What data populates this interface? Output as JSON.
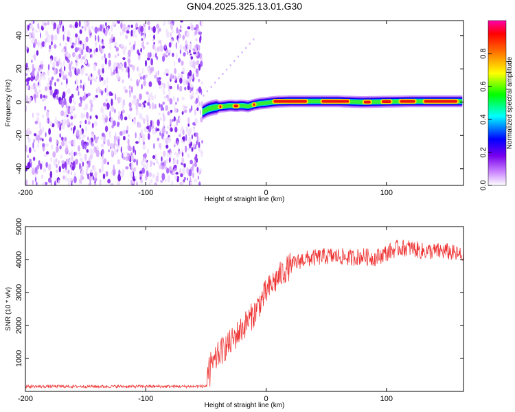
{
  "title": "GN04.2025.325.13.01.G30",
  "chart_data": [
    {
      "type": "heatmap",
      "name": "spectrogram",
      "xlabel": "Height of straight line (km)",
      "ylabel": "Frequency (Hz)",
      "xlim": [
        -200,
        164
      ],
      "ylim": [
        -50,
        49
      ],
      "xticks": [
        -200,
        -100,
        0,
        100
      ],
      "yticks": [
        -40,
        -20,
        0,
        20,
        40
      ],
      "noise_region_x": [
        -200,
        -53
      ],
      "carrier_trace": {
        "x": [
          -53,
          -48,
          -42,
          -35,
          -30,
          -25,
          -20,
          -15,
          -10,
          -5,
          0,
          5,
          10,
          20,
          40,
          60,
          80,
          100,
          120,
          140,
          164
        ],
        "y": [
          -6,
          -4,
          -3,
          -2.5,
          -2,
          -2.3,
          -2,
          -2.5,
          -1.5,
          -0.8,
          -0.5,
          0,
          0.3,
          0.5,
          0.5,
          0.5,
          0,
          0.3,
          0.5,
          0.5,
          0.5
        ]
      },
      "colorbar": {
        "label": "Normalized spectral amplitude",
        "ticks": [
          0.0,
          0.2,
          0.4,
          0.6,
          0.8
        ],
        "range": [
          0,
          1
        ]
      }
    },
    {
      "type": "line",
      "name": "snr",
      "xlabel": "Height of straight line (km)",
      "ylabel": "SNR (10 * v/v)",
      "xlim": [
        -200,
        164
      ],
      "ylim": [
        0,
        5000
      ],
      "xticks": [
        -200,
        -100,
        0,
        100
      ],
      "yticks": [
        1000,
        2000,
        3000,
        4000,
        5000
      ],
      "color": "#ee3333",
      "series": [
        {
          "name": "SNR",
          "x": [
            -200,
            -150,
            -100,
            -60,
            -50,
            -45,
            -40,
            -35,
            -30,
            -25,
            -20,
            -15,
            -10,
            -5,
            0,
            5,
            10,
            15,
            20,
            25,
            30,
            40,
            50,
            60,
            70,
            80,
            90,
            100,
            110,
            120,
            130,
            140,
            150,
            164
          ],
          "values": [
            150,
            150,
            150,
            150,
            160,
            700,
            1100,
            1300,
            1450,
            1700,
            1900,
            2150,
            2350,
            2700,
            3000,
            3250,
            3450,
            3650,
            3800,
            3900,
            4000,
            4050,
            4100,
            4100,
            4050,
            4100,
            4050,
            4200,
            4350,
            4350,
            4250,
            4250,
            4250,
            4100
          ]
        }
      ]
    }
  ]
}
